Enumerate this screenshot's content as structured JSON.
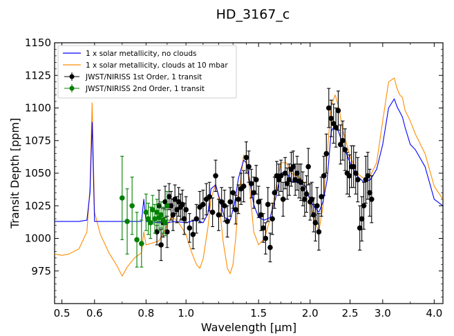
{
  "chart_data": {
    "type": "line",
    "title": "HD_3167_c",
    "xlabel": "Wavelength [μm]",
    "ylabel": "Transit Depth [ppm]",
    "xscale": "log",
    "xlim": [
      0.48,
      4.2
    ],
    "ylim": [
      950,
      1150
    ],
    "grid": false,
    "legend_position": "top-left",
    "xticks": [
      {
        "value": 0.5,
        "label": "0.5"
      },
      {
        "value": 0.6,
        "label": "0.6"
      },
      {
        "value": 0.8,
        "label": "0.8"
      },
      {
        "value": 1.0,
        "label": "1.0"
      },
      {
        "value": 1.5,
        "label": "1.5"
      },
      {
        "value": 2.0,
        "label": "2.0"
      },
      {
        "value": 2.5,
        "label": "2.5"
      },
      {
        "value": 3.0,
        "label": "3.0"
      },
      {
        "value": 4.0,
        "label": "4.0"
      }
    ],
    "yticks": [
      975,
      1000,
      1025,
      1050,
      1075,
      1100,
      1125,
      1150
    ],
    "series": [
      {
        "name": "1 x solar metallicity, no clouds",
        "kind": "line",
        "color": "#0000ff",
        "x": [
          0.48,
          0.55,
          0.575,
          0.585,
          0.592,
          0.6,
          0.65,
          0.72,
          0.78,
          0.79,
          0.8,
          0.86,
          0.9,
          0.94,
          1.0,
          1.06,
          1.1,
          1.13,
          1.15,
          1.18,
          1.2,
          1.24,
          1.28,
          1.31,
          1.34,
          1.38,
          1.4,
          1.43,
          1.46,
          1.5,
          1.55,
          1.6,
          1.65,
          1.7,
          1.75,
          1.8,
          1.85,
          1.9,
          1.95,
          2.0,
          2.05,
          2.1,
          2.15,
          2.2,
          2.25,
          2.3,
          2.35,
          2.4,
          2.5,
          2.6,
          2.7,
          2.8,
          2.9,
          3.0,
          3.1,
          3.2,
          3.25,
          3.3,
          3.35,
          3.4,
          3.5,
          3.6,
          3.8,
          4.0,
          4.2
        ],
        "y": [
          1013,
          1013,
          1014,
          1035,
          1089,
          1013,
          1013,
          1013,
          1013,
          1030,
          1013,
          1012,
          1012,
          1013,
          1012,
          1014,
          1012,
          1019,
          1038,
          1041,
          1033,
          1016,
          1014,
          1026,
          1046,
          1060,
          1058,
          1043,
          1026,
          1016,
          1014,
          1016,
          1031,
          1050,
          1051,
          1044,
          1043,
          1042,
          1040,
          1029,
          1024,
          1020,
          1028,
          1045,
          1082,
          1087,
          1081,
          1072,
          1058,
          1048,
          1043,
          1045,
          1053,
          1072,
          1100,
          1107,
          1101,
          1097,
          1093,
          1085,
          1072,
          1068,
          1055,
          1030,
          1025
        ]
      },
      {
        "name": "1 x solar metallicity, clouds at 10 mbar",
        "kind": "line",
        "color": "#ff8c00",
        "x": [
          0.48,
          0.5,
          0.52,
          0.55,
          0.575,
          0.585,
          0.592,
          0.6,
          0.62,
          0.65,
          0.68,
          0.7,
          0.72,
          0.75,
          0.78,
          0.79,
          0.8,
          0.86,
          0.9,
          0.92,
          0.94,
          0.96,
          1.0,
          1.03,
          1.06,
          1.08,
          1.1,
          1.13,
          1.15,
          1.18,
          1.2,
          1.23,
          1.26,
          1.28,
          1.3,
          1.32,
          1.34,
          1.38,
          1.4,
          1.43,
          1.46,
          1.5,
          1.55,
          1.6,
          1.65,
          1.7,
          1.75,
          1.8,
          1.85,
          1.9,
          1.95,
          2.0,
          2.05,
          2.1,
          2.15,
          2.2,
          2.25,
          2.3,
          2.35,
          2.4,
          2.5,
          2.6,
          2.7,
          2.8,
          2.9,
          3.0,
          3.1,
          3.2,
          3.25,
          3.3,
          3.35,
          3.4,
          3.5,
          3.6,
          3.8,
          4.0,
          4.2
        ],
        "y": [
          988,
          987,
          988,
          992,
          1005,
          1040,
          1104,
          1020,
          1003,
          989,
          979,
          971,
          978,
          985,
          989,
          1005,
          995,
          998,
          1010,
          1016,
          1015,
          1012,
          1003,
          990,
          980,
          977,
          984,
          1008,
          1030,
          1042,
          1031,
          998,
          977,
          973,
          980,
          1000,
          1030,
          1064,
          1062,
          1035,
          1005,
          995,
          1000,
          1015,
          1038,
          1058,
          1058,
          1050,
          1048,
          1046,
          1040,
          1028,
          1014,
          1005,
          1025,
          1065,
          1102,
          1110,
          1100,
          1083,
          1063,
          1050,
          1046,
          1048,
          1058,
          1090,
          1120,
          1123,
          1115,
          1110,
          1108,
          1098,
          1090,
          1080,
          1065,
          1040,
          1030
        ]
      },
      {
        "name": "JWST/NIRISS 1st Order,  1 transit",
        "kind": "errorbar",
        "color": "#000000",
        "x": [
          0.85,
          0.86,
          0.87,
          0.88,
          0.89,
          0.9,
          0.91,
          0.92,
          0.93,
          0.94,
          0.95,
          0.96,
          0.97,
          0.98,
          0.99,
          1.0,
          1.02,
          1.04,
          1.06,
          1.08,
          1.1,
          1.12,
          1.14,
          1.16,
          1.18,
          1.2,
          1.22,
          1.24,
          1.26,
          1.28,
          1.3,
          1.32,
          1.34,
          1.36,
          1.38,
          1.4,
          1.42,
          1.44,
          1.46,
          1.48,
          1.5,
          1.52,
          1.54,
          1.56,
          1.58,
          1.6,
          1.62,
          1.64,
          1.66,
          1.68,
          1.7,
          1.72,
          1.74,
          1.76,
          1.78,
          1.8,
          1.82,
          1.84,
          1.86,
          1.88,
          1.9,
          1.92,
          1.94,
          1.96,
          1.98,
          2.0,
          2.02,
          2.04,
          2.06,
          2.08,
          2.1,
          2.13,
          2.16,
          2.19,
          2.22,
          2.25,
          2.28,
          2.31,
          2.34,
          2.37,
          2.4,
          2.43,
          2.46,
          2.49,
          2.52,
          2.55,
          2.58,
          2.61,
          2.64,
          2.67,
          2.7,
          2.73,
          2.76,
          2.79,
          2.82
        ],
        "y": [
          1005,
          1025,
          995,
          1012,
          1028,
          1005,
          1032,
          1025,
          1018,
          1030,
          1022,
          1028,
          1024,
          1026,
          1015,
          1022,
          1008,
          1003,
          1015,
          1024,
          1026,
          1030,
          1032,
          1020,
          1048,
          1018,
          1028,
          1025,
          1013,
          1028,
          1035,
          1022,
          1030,
          1038,
          1040,
          1062,
          1055,
          1042,
          1035,
          1045,
          1028,
          1018,
          1008,
          1000,
          1026,
          993,
          1015,
          1035,
          1048,
          1045,
          1048,
          1030,
          1050,
          1042,
          1045,
          1053,
          1055,
          1045,
          1050,
          1044,
          1043,
          1038,
          1030,
          1034,
          1055,
          1028,
          1030,
          1018,
          1012,
          1025,
          1005,
          1032,
          1048,
          1065,
          1100,
          1092,
          1088,
          1085,
          1098,
          1072,
          1075,
          1068,
          1050,
          1048,
          1055,
          1055,
          1050,
          1045,
          1008,
          1015,
          1025,
          1045,
          1048,
          1035,
          1030
        ],
        "yerr": [
          10,
          12,
          12,
          11,
          12,
          12,
          10,
          11,
          12,
          11,
          10,
          11,
          10,
          11,
          12,
          10,
          11,
          11,
          11,
          12,
          11,
          12,
          11,
          11,
          12,
          12,
          11,
          12,
          12,
          11,
          12,
          11,
          11,
          12,
          12,
          12,
          12,
          11,
          12,
          11,
          12,
          12,
          11,
          12,
          13,
          11,
          12,
          12,
          11,
          12,
          12,
          13,
          12,
          12,
          12,
          13,
          12,
          12,
          13,
          13,
          14,
          13,
          13,
          14,
          14,
          14,
          13,
          13,
          14,
          14,
          14,
          15,
          15,
          15,
          15,
          14,
          15,
          15,
          15,
          15,
          15,
          16,
          16,
          16,
          16,
          16,
          16,
          17,
          17,
          17,
          18,
          18,
          18,
          18,
          18
        ]
      },
      {
        "name": "JWST/NIRISS 2nd Order,  1 transit",
        "kind": "errorbar",
        "color": "#008000",
        "x": [
          0.7,
          0.72,
          0.74,
          0.76,
          0.78,
          0.8,
          0.81,
          0.82,
          0.83,
          0.84,
          0.85,
          0.86,
          0.87,
          0.88,
          0.89,
          0.9
        ],
        "y": [
          1031,
          1013,
          1025,
          999,
          996,
          1020,
          1015,
          1012,
          1022,
          1015,
          1020,
          1016,
          1018,
          1014,
          1012,
          1025
        ],
        "yerr": [
          32,
          25,
          22,
          21,
          18,
          14,
          12,
          12,
          11,
          11,
          10,
          10,
          10,
          10,
          10,
          11
        ]
      }
    ]
  }
}
